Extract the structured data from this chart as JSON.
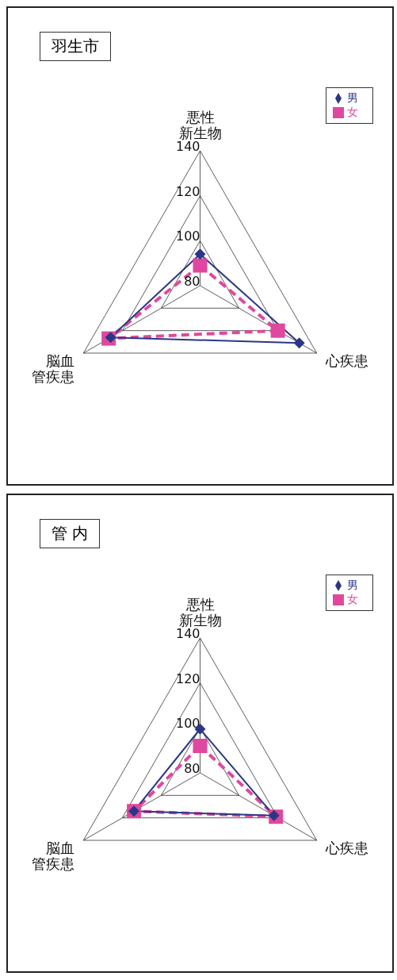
{
  "chart_data": [
    {
      "type": "radar",
      "title": "羽生市",
      "categories": [
        "悪性新生物",
        "心疾患",
        "脳血管疾患"
      ],
      "ylim": [
        80,
        140
      ],
      "yticks": [
        80,
        100,
        120,
        140
      ],
      "legend": "top right",
      "series": [
        {
          "name": "男",
          "color": "#2b3784",
          "values": [
            94,
            131,
            126
          ],
          "marker": "diamond",
          "line_style": "solid"
        },
        {
          "name": "女",
          "color": "#e0479e",
          "values": [
            89,
            120,
            127
          ],
          "marker": "square",
          "line_style": "dashed"
        }
      ]
    },
    {
      "type": "radar",
      "title": "管 内",
      "categories": [
        "悪性新生物",
        "心疾患",
        "脳血管疾患"
      ],
      "ylim": [
        80,
        140
      ],
      "yticks": [
        80,
        100,
        120,
        140
      ],
      "legend": "top right",
      "series": [
        {
          "name": "男",
          "color": "#2b3784",
          "values": [
            99.5,
            118,
            114
          ],
          "marker": "diamond",
          "line_style": "solid"
        },
        {
          "name": "女",
          "color": "#e0479e",
          "values": [
            92,
            119,
            114
          ],
          "marker": "square",
          "line_style": "dashed"
        }
      ]
    }
  ]
}
